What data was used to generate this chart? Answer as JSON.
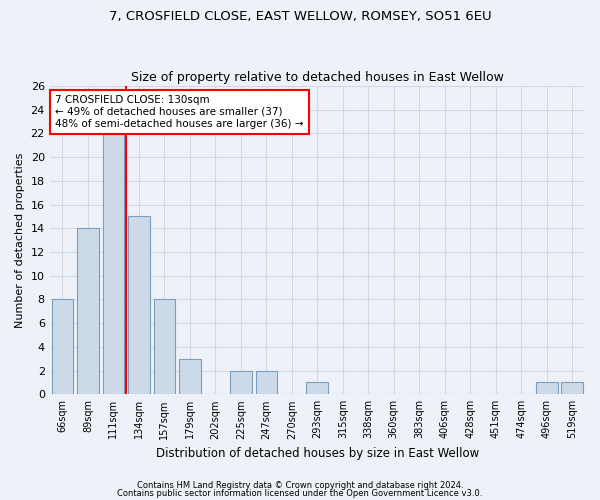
{
  "title1": "7, CROSFIELD CLOSE, EAST WELLOW, ROMSEY, SO51 6EU",
  "title2": "Size of property relative to detached houses in East Wellow",
  "xlabel": "Distribution of detached houses by size in East Wellow",
  "ylabel": "Number of detached properties",
  "categories": [
    "66sqm",
    "89sqm",
    "111sqm",
    "134sqm",
    "157sqm",
    "179sqm",
    "202sqm",
    "225sqm",
    "247sqm",
    "270sqm",
    "293sqm",
    "315sqm",
    "338sqm",
    "360sqm",
    "383sqm",
    "406sqm",
    "428sqm",
    "451sqm",
    "474sqm",
    "496sqm",
    "519sqm"
  ],
  "values": [
    8,
    14,
    22,
    15,
    8,
    3,
    0,
    2,
    2,
    0,
    1,
    0,
    0,
    0,
    0,
    0,
    0,
    0,
    0,
    1,
    1
  ],
  "bar_color": "#ccd9e8",
  "bar_edge_color": "#7a9fbe",
  "annotation_text": "7 CROSFIELD CLOSE: 130sqm\n← 49% of detached houses are smaller (37)\n48% of semi-detached houses are larger (36) →",
  "annotation_box_color": "white",
  "annotation_box_edge_color": "red",
  "subject_line_color": "red",
  "ylim": [
    0,
    26
  ],
  "yticks": [
    0,
    2,
    4,
    6,
    8,
    10,
    12,
    14,
    16,
    18,
    20,
    22,
    24,
    26
  ],
  "footer1": "Contains HM Land Registry data © Crown copyright and database right 2024.",
  "footer2": "Contains public sector information licensed under the Open Government Licence v3.0.",
  "grid_color": "#d0d8e8",
  "bg_color": "#eef2f8"
}
